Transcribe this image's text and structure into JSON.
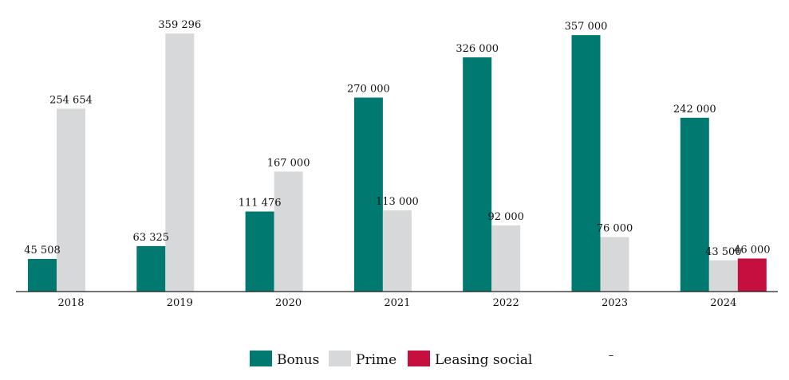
{
  "chart_data": {
    "type": "bar",
    "categories": [
      "2018",
      "2019",
      "2020",
      "2021",
      "2022",
      "2023",
      "2024"
    ],
    "series": [
      {
        "name": "Bonus",
        "color": "#007A70",
        "values": [
          45508,
          63325,
          111476,
          270000,
          326000,
          357000,
          242000
        ],
        "labels": [
          "45 508",
          "63 325",
          "111 476",
          "270 000",
          "326 000",
          "357 000",
          "242 000"
        ]
      },
      {
        "name": "Prime",
        "color": "#D7D8D9",
        "values": [
          254654,
          359296,
          167000,
          113000,
          92000,
          76000,
          43500
        ],
        "labels": [
          "254 654",
          "359 296",
          "167 000",
          "113 000",
          "92 000",
          "76 000",
          "43 500"
        ]
      },
      {
        "name": "Leasing social",
        "color": "#C40F3F",
        "values": [
          null,
          null,
          null,
          null,
          null,
          null,
          46000
        ],
        "labels": [
          null,
          null,
          null,
          null,
          null,
          null,
          "46 000"
        ]
      }
    ],
    "ylim": [
      0,
      359296
    ],
    "grid": false,
    "legend": "bottom-center",
    "legend_extra": "–"
  }
}
